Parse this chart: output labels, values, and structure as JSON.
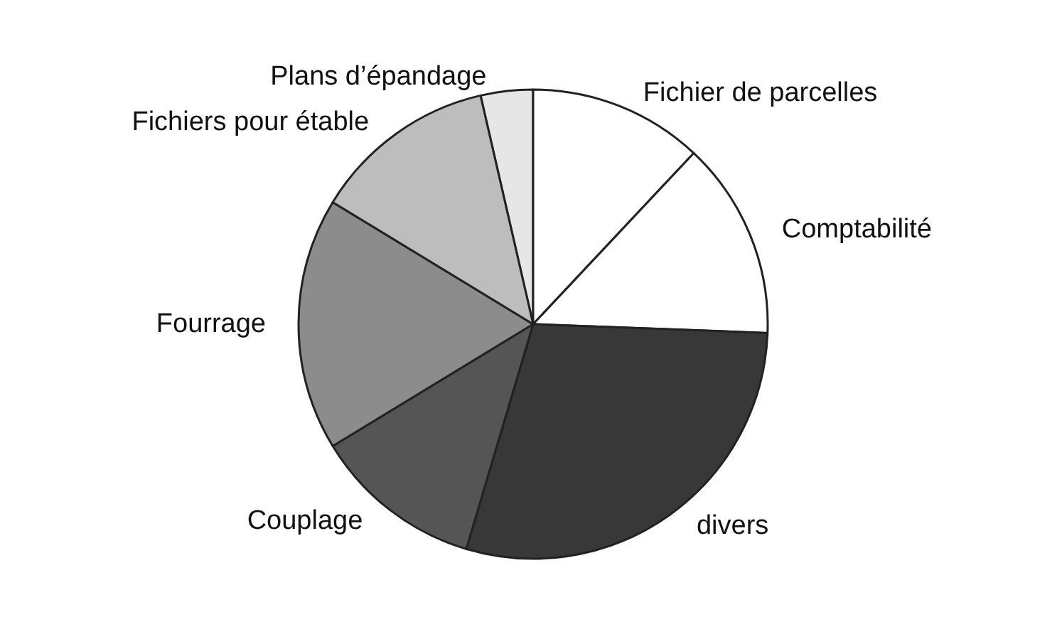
{
  "chart_data": {
    "type": "pie",
    "categories": [
      "Plans d’épandage",
      "Fichier de parcelles",
      "Comptabilité",
      "divers",
      "Couplage",
      "Fourrage",
      "Fichiers pour étable"
    ],
    "values": [
      3.6,
      12,
      13.6,
      29,
      11.7,
      17.4,
      12.7
    ],
    "colors": [
      "#e6e6e6",
      "#ffffff",
      "#ffffff",
      "#383838",
      "#555555",
      "#8c8c8c",
      "#bdbdbd"
    ],
    "legend": false
  }
}
